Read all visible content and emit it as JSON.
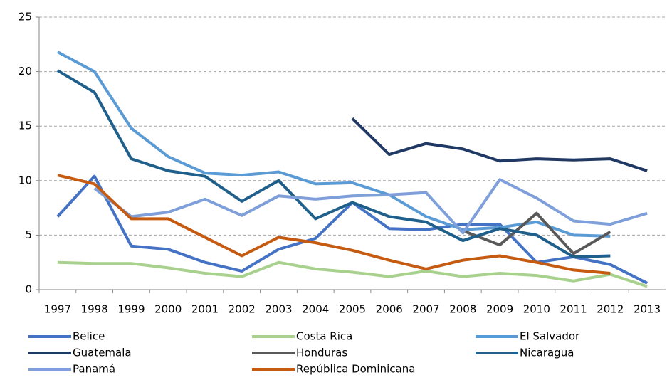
{
  "chart_data": {
    "type": "line",
    "categories": [
      "1997",
      "1998",
      "1999",
      "2000",
      "2001",
      "2002",
      "2003",
      "2004",
      "2005",
      "2006",
      "2007",
      "2008",
      "2009",
      "2010",
      "2011",
      "2012",
      "2013"
    ],
    "ylim": [
      0,
      25
    ],
    "yticks": [
      0,
      5,
      10,
      15,
      20,
      25
    ],
    "grid": true,
    "legend": "bottom",
    "series": [
      {
        "name": "Belice",
        "color": "#4472c4",
        "values": [
          6.7,
          10.4,
          4.0,
          3.7,
          2.5,
          1.7,
          3.7,
          4.7,
          8.0,
          5.6,
          5.5,
          6.0,
          6.0,
          2.5,
          3.0,
          2.3,
          0.6
        ]
      },
      {
        "name": "Costa Rica",
        "color": "#a9d18e",
        "values": [
          2.5,
          2.4,
          2.4,
          2.0,
          1.5,
          1.2,
          2.5,
          1.9,
          1.6,
          1.2,
          1.7,
          1.2,
          1.5,
          1.3,
          0.8,
          1.4,
          0.3
        ]
      },
      {
        "name": "El Salvador",
        "color": "#5b9bd5",
        "values": [
          21.8,
          20.0,
          14.8,
          12.2,
          10.7,
          10.5,
          10.8,
          9.7,
          9.8,
          8.7,
          6.7,
          5.5,
          5.7,
          6.2,
          5.0,
          4.9,
          null
        ]
      },
      {
        "name": "Guatemala",
        "color": "#203864",
        "values": [
          null,
          null,
          null,
          null,
          null,
          null,
          null,
          null,
          15.7,
          12.4,
          13.4,
          12.9,
          11.8,
          12.0,
          11.9,
          12.0,
          10.9
        ]
      },
      {
        "name": "Honduras",
        "color": "#595959",
        "values": [
          null,
          null,
          null,
          null,
          null,
          null,
          null,
          null,
          null,
          null,
          null,
          5.4,
          4.1,
          7.0,
          3.3,
          5.3,
          null
        ]
      },
      {
        "name": "Nicaragua",
        "color": "#1f5f8b",
        "values": [
          20.1,
          18.1,
          12.0,
          10.9,
          10.4,
          8.1,
          10.0,
          6.5,
          8.0,
          6.7,
          6.2,
          4.5,
          5.6,
          5.0,
          3.0,
          3.1,
          null
        ]
      },
      {
        "name": "Panamá",
        "color": "#7f9fdb",
        "values": [
          null,
          9.3,
          6.7,
          7.1,
          8.3,
          6.8,
          8.6,
          8.3,
          8.6,
          8.7,
          8.9,
          5.2,
          10.1,
          8.4,
          6.3,
          6.0,
          7.0
        ]
      },
      {
        "name": "República Dominicana",
        "color": "#c55a11",
        "values": [
          10.5,
          9.7,
          6.5,
          6.5,
          4.8,
          3.1,
          4.8,
          4.3,
          3.6,
          2.7,
          1.9,
          2.7,
          3.1,
          2.5,
          1.8,
          1.5,
          null
        ]
      }
    ]
  }
}
